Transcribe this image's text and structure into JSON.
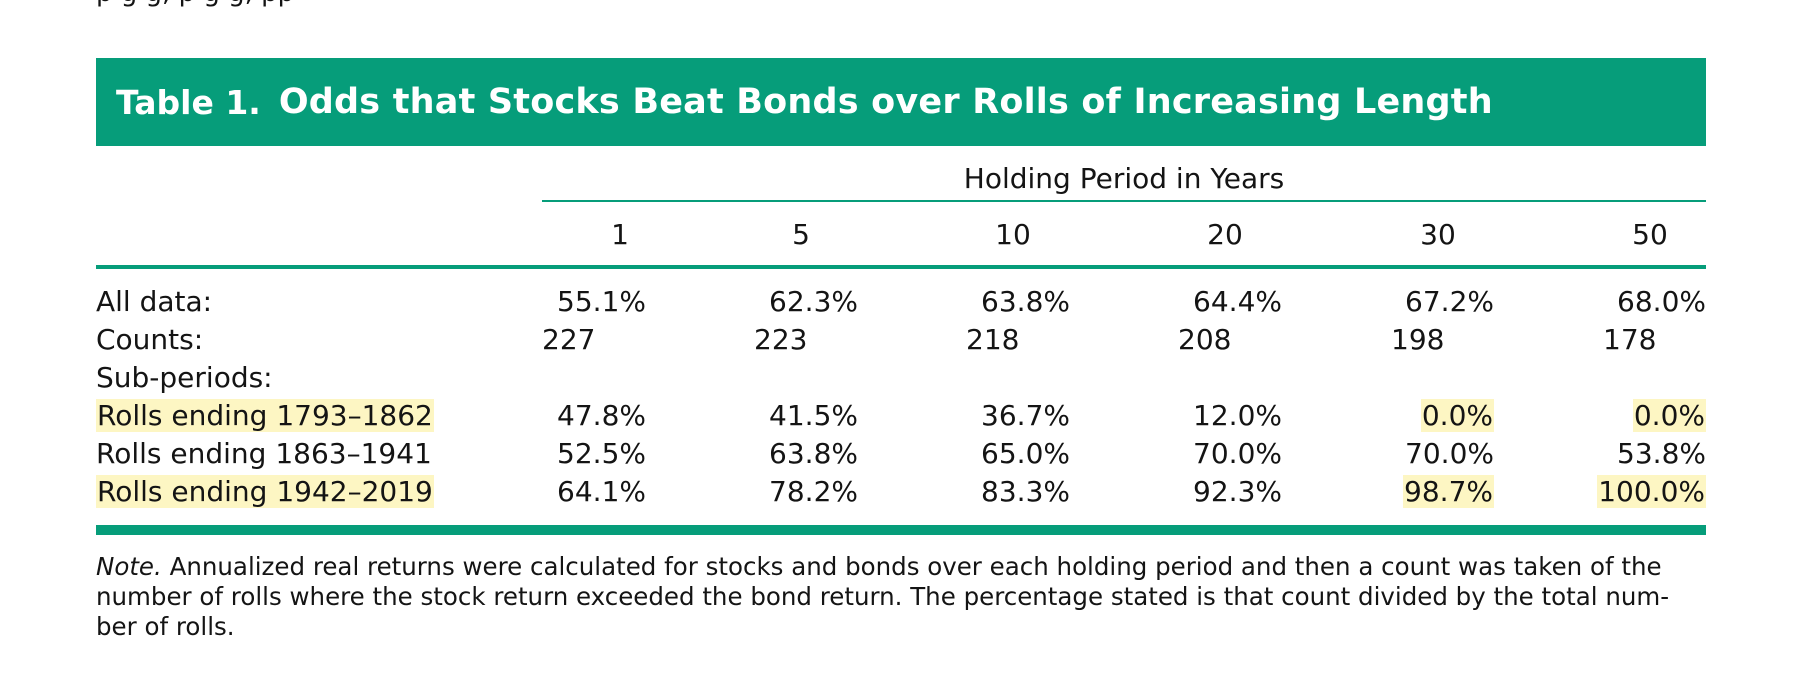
{
  "top_fragment": "p                     g     g,                                         p                            g                                  g,  pp",
  "table": {
    "label": "Table 1.",
    "title": "Odds that Stocks Beat Bonds over Rolls of Increasing Length",
    "group_header": "Holding Period in Years",
    "columns": [
      "1",
      "5",
      "10",
      "20",
      "30",
      "50"
    ],
    "rows": {
      "all_data": {
        "label": "All data:",
        "values": [
          "55.1%",
          "62.3%",
          "63.8%",
          "64.4%",
          "67.2%",
          "68.0%"
        ]
      },
      "counts": {
        "label": "Counts:",
        "values": [
          "227",
          "223",
          "218",
          "208",
          "198",
          "178"
        ]
      },
      "sub_periods": {
        "label": "Sub-periods:"
      },
      "rolls_1793_1862": {
        "label": "Rolls ending 1793–1862",
        "values": [
          "47.8%",
          "41.5%",
          "36.7%",
          "12.0%",
          "0.0%",
          "0.0%"
        ],
        "highlighted": true
      },
      "rolls_1863_1941": {
        "label": "Rolls ending 1863–1941",
        "values": [
          "52.5%",
          "63.8%",
          "65.0%",
          "70.0%",
          "70.0%",
          "53.8%"
        ]
      },
      "rolls_1942_2019": {
        "label": "Rolls ending 1942–2019",
        "values": [
          "64.1%",
          "78.2%",
          "83.3%",
          "92.3%",
          "98.7%",
          "100.0%"
        ],
        "highlighted": true
      }
    }
  },
  "note": {
    "lead": "Note.",
    "line1": " Annualized real returns were calculated for stocks and bonds over each holding period and then a count was taken of the",
    "line2": "number of rolls where the stock return exceeded the bond return. The percentage stated is that count divided by the total num-",
    "line3": "ber of rolls."
  },
  "colors": {
    "accent": "#069d7a",
    "highlight": "#fdf6c3",
    "text": "#141414"
  }
}
